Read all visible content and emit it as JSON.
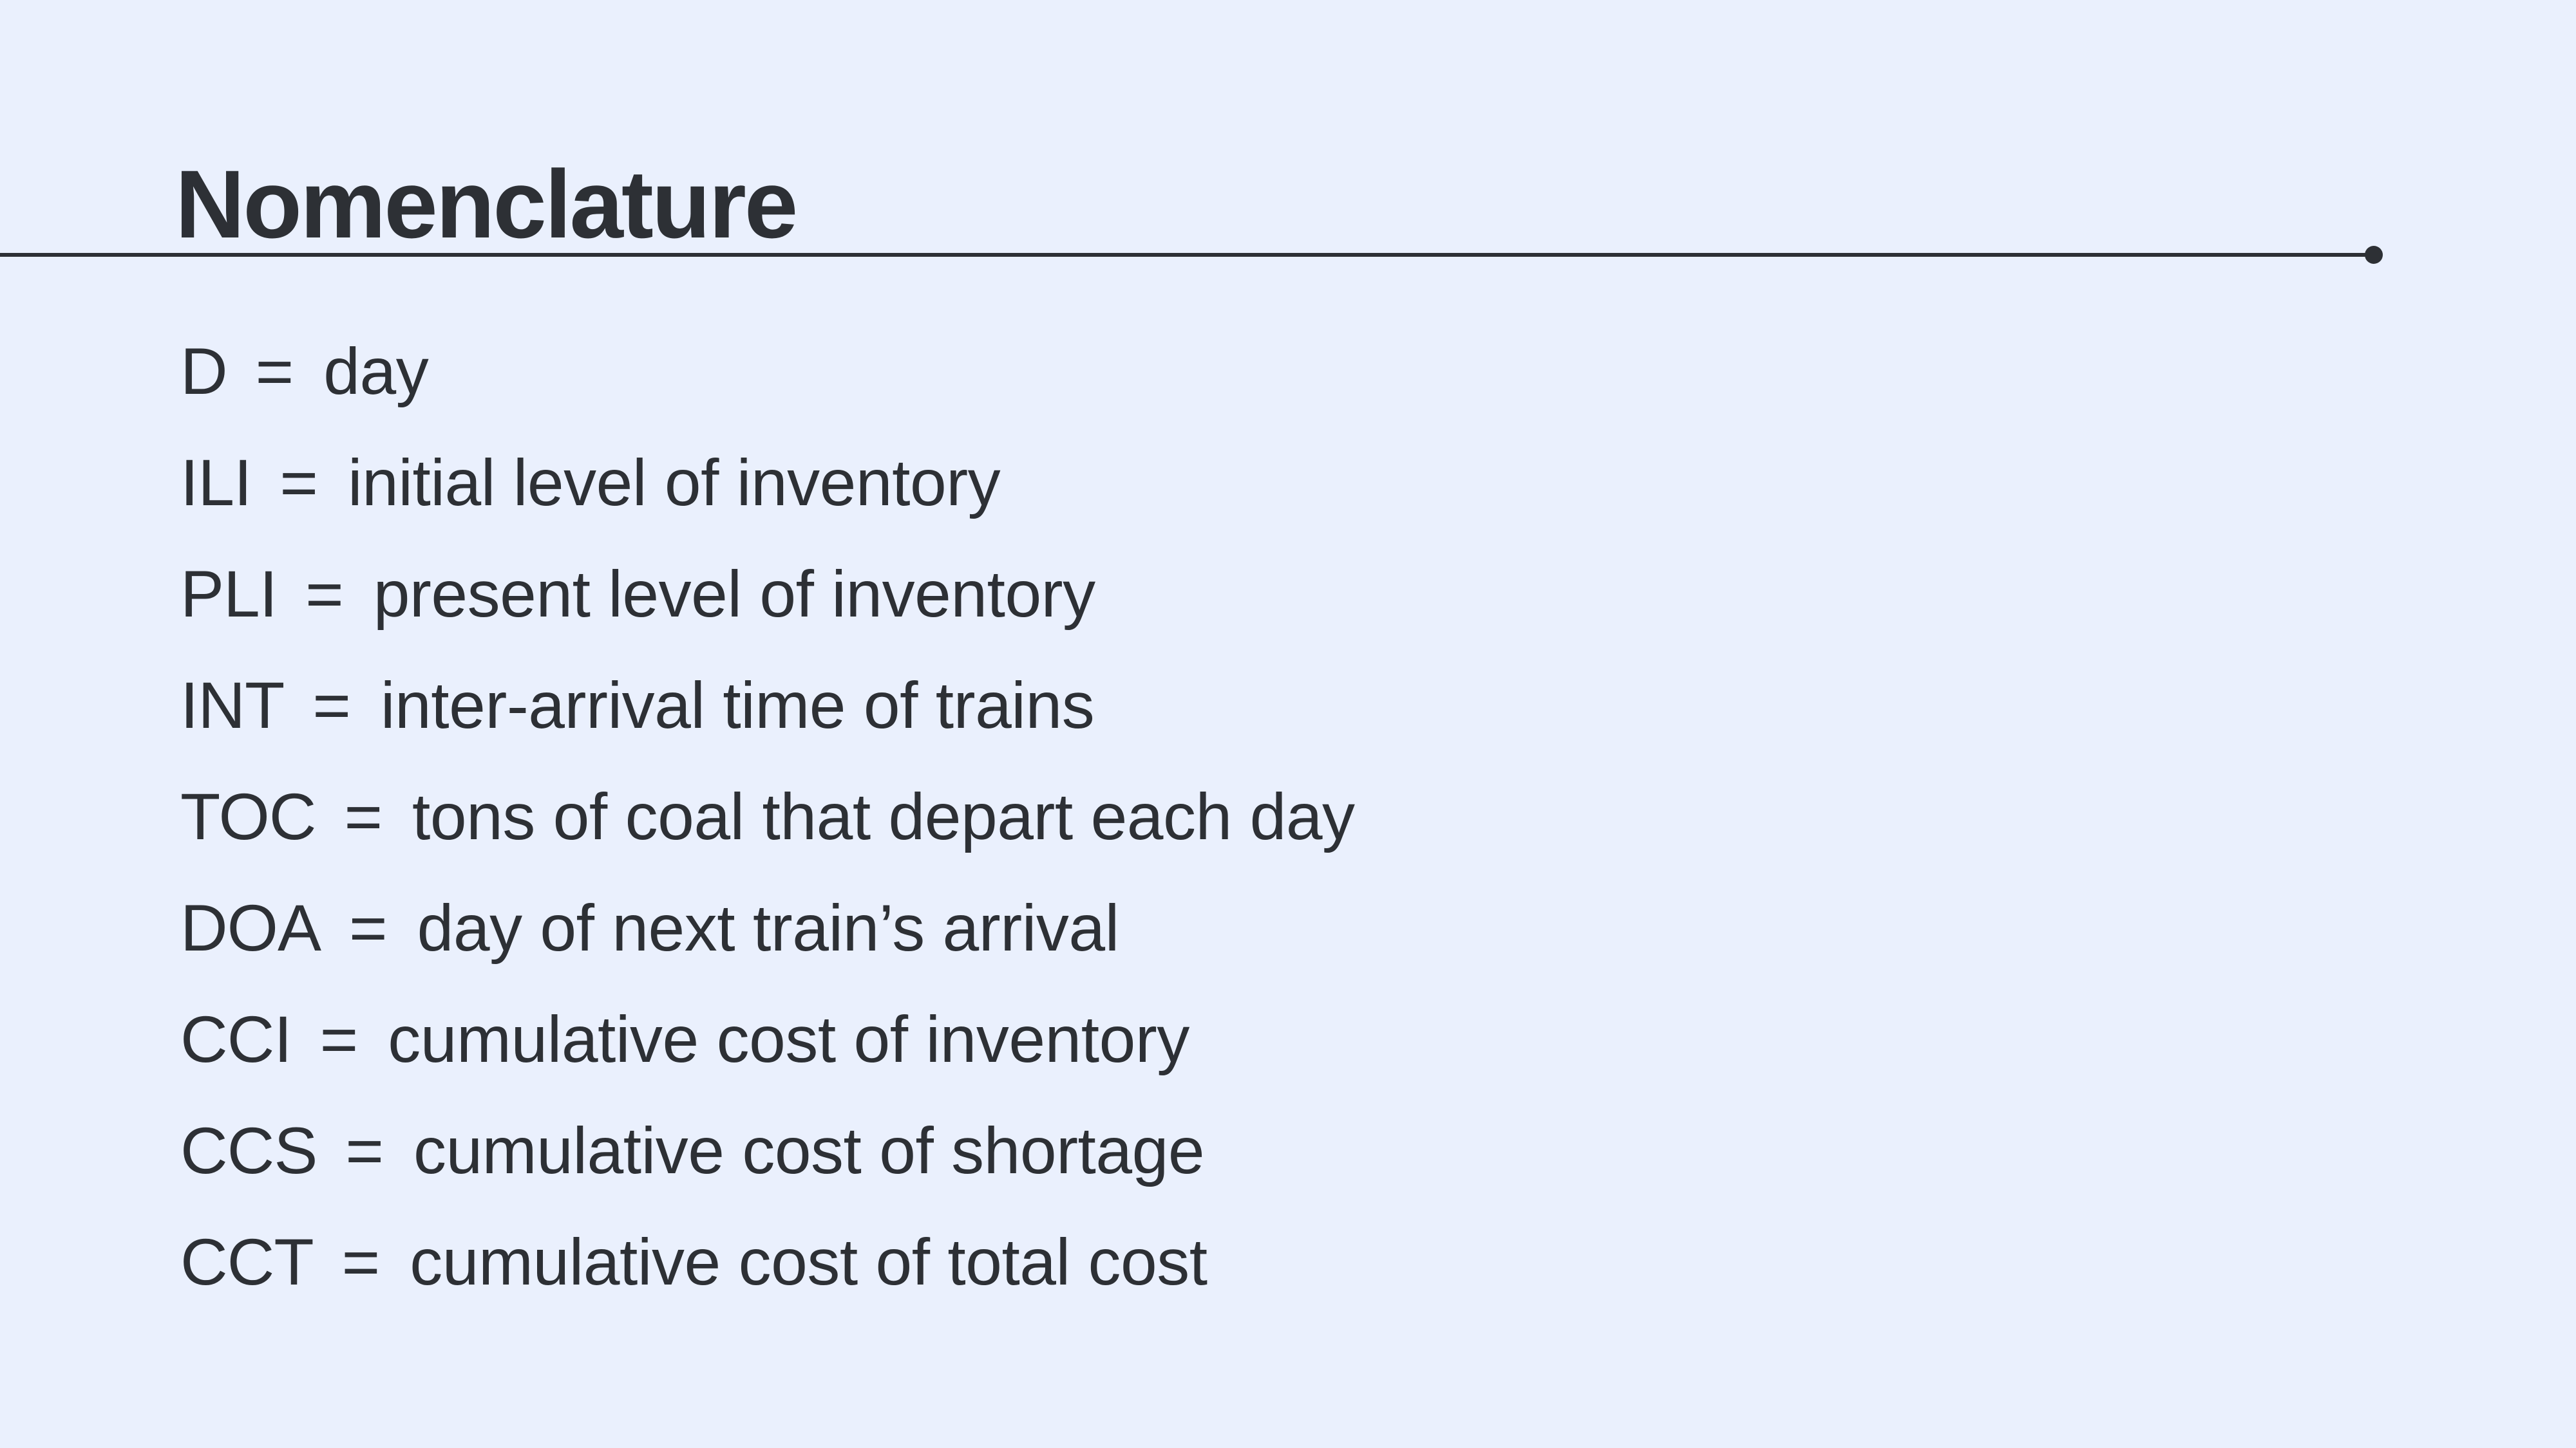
{
  "slide": {
    "title": "Nomenclature",
    "equals_sign": "=",
    "terms": [
      {
        "abbr": "D",
        "definition": "day"
      },
      {
        "abbr": "ILI",
        "definition": "initial level of inventory"
      },
      {
        "abbr": "PLI",
        "definition": "present level of inventory"
      },
      {
        "abbr": "INT",
        "definition": "inter-arrival time of trains"
      },
      {
        "abbr": "TOC",
        "definition": "tons of coal that depart each day"
      },
      {
        "abbr": "DOA",
        "definition": "day of next train’s arrival"
      },
      {
        "abbr": "CCI",
        "definition": "cumulative cost of inventory"
      },
      {
        "abbr": "CCS",
        "definition": "cumulative cost of shortage"
      },
      {
        "abbr": "CCT",
        "definition": "cumulative cost of total cost"
      }
    ]
  },
  "colors": {
    "background": "#eaf0fd",
    "text": "#2d3035"
  }
}
